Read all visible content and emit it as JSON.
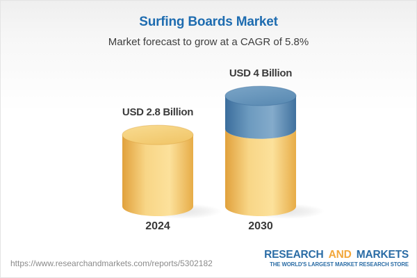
{
  "header": {
    "title": "Surfing Boards Market",
    "subtitle": "Market forecast to grow at a CAGR of 5.8%"
  },
  "chart_data": {
    "type": "bar",
    "subtype": "3d-cylinder-stacked",
    "title": "Surfing Boards Market",
    "subtitle": "Market forecast to grow at a CAGR of 5.8%",
    "cagr": "5.8%",
    "unit": "USD Billion",
    "categories": [
      "2024",
      "2030"
    ],
    "values": [
      2.8,
      4
    ],
    "value_labels": [
      "USD 2.8 Billion",
      "USD 4 Billion"
    ],
    "series": [
      {
        "name": "base-market-size",
        "color_key": "yellow",
        "values": [
          2.8,
          2.8
        ]
      },
      {
        "name": "forecast-growth",
        "color_key": "blue",
        "values": [
          0,
          1.2
        ]
      }
    ],
    "ylim": [
      0,
      4
    ],
    "grid": false,
    "legend": "none",
    "xlabel": "",
    "ylabel": ""
  },
  "footer": {
    "url": "https://www.researchandmarkets.com/reports/5302182",
    "logo": {
      "part1": "RESEARCH",
      "part2": "AND",
      "part3": "MARKETS",
      "tagline": "THE WORLD'S LARGEST MARKET RESEARCH STORE"
    }
  },
  "colors": {
    "title_blue": "#1E6CB0",
    "text_dark": "#3B3B3B",
    "url_gray": "#8A8A8A",
    "logo_blue": "#2A6CA5",
    "logo_orange": "#F2A73B",
    "background_top": "#EFEFEF",
    "background_bottom": "#FFFFFF",
    "cylinder_yellow": {
      "side": [
        "#E1A13C",
        "#F8D687",
        "#FCE19B",
        "#E7AC47"
      ],
      "top": [
        "#F9DC92",
        "#F1C76B"
      ],
      "rim": "#D99F3F"
    },
    "cylinder_blue": {
      "side": [
        "#3B6D9C",
        "#6C9ABF",
        "#84ABCB",
        "#40719E"
      ],
      "top": [
        "#7BA5C7",
        "#5C8CB4"
      ],
      "rim": "#3A6B99"
    }
  }
}
